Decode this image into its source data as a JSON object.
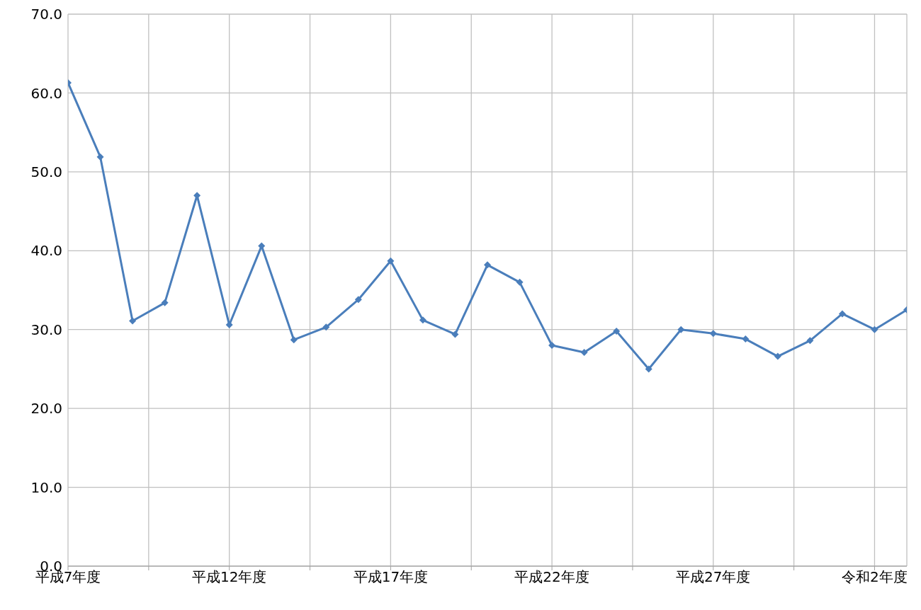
{
  "chart_data": {
    "type": "line",
    "categories": [
      "平成7年度",
      null,
      null,
      null,
      null,
      "平成12年度",
      null,
      null,
      null,
      null,
      "平成17年度",
      null,
      null,
      null,
      null,
      "平成22年度",
      null,
      null,
      null,
      null,
      "平成27年度",
      null,
      null,
      null,
      null,
      "令和2年度",
      null
    ],
    "series": [
      {
        "color": "#4a7ebb",
        "values": [
          61.3,
          51.9,
          31.1,
          33.4,
          47.0,
          30.6,
          40.6,
          28.7,
          30.3,
          33.8,
          38.7,
          31.2,
          29.4,
          38.2,
          36.0,
          28.0,
          27.1,
          29.8,
          25.0,
          30.0,
          29.5,
          28.8,
          26.6,
          28.6,
          32.0,
          30.0,
          32.5
        ]
      }
    ],
    "ylim": [
      0,
      70
    ],
    "yticks": [
      {
        "value": 0,
        "label": "0.0"
      },
      {
        "value": 10,
        "label": "10.0"
      },
      {
        "value": 20,
        "label": "20.0"
      },
      {
        "value": 30,
        "label": "30.0"
      },
      {
        "value": 40,
        "label": "40.0"
      },
      {
        "value": 50,
        "label": "50.0"
      },
      {
        "value": 60,
        "label": "60.0"
      },
      {
        "value": 70,
        "label": "70.0"
      }
    ],
    "grid": true,
    "legend": false,
    "marker": "diamond",
    "line_style": "solid"
  }
}
